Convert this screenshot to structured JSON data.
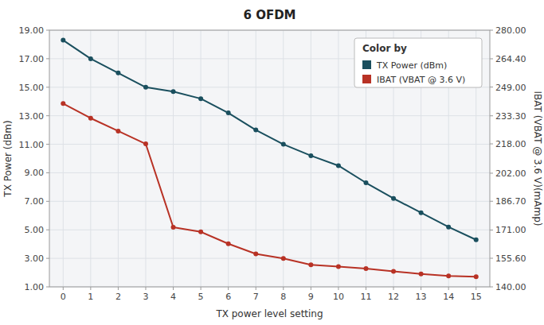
{
  "chart_data": {
    "type": "line",
    "title": "6 OFDM",
    "xlabel": "TX power level setting",
    "ylabel": "TX Power (dBm)",
    "y2label": "IBAT (VBAT @ 3.6 V)(mAmp)",
    "x": [
      0,
      1,
      2,
      3,
      4,
      5,
      6,
      7,
      8,
      9,
      10,
      11,
      12,
      13,
      14,
      15
    ],
    "series": [
      {
        "name": "TX Power (dBm)",
        "color": "#1a4f5e",
        "marker": "circle",
        "values": [
          18.3,
          17.0,
          16.0,
          15.0,
          14.7,
          14.2,
          13.2,
          12.0,
          11.0,
          10.2,
          9.5,
          8.3,
          7.2,
          6.2,
          5.2,
          4.3
        ]
      },
      {
        "name": "IBAT (VBAT @ 3.6 V)",
        "color": "#b83225",
        "marker": "circle",
        "axis": "y2",
        "values": [
          240.0,
          232.0,
          225.0,
          218.0,
          172.5,
          170.0,
          163.5,
          158.0,
          155.5,
          152.0,
          151.0,
          150.0,
          148.5,
          147.0,
          146.0,
          145.5
        ]
      }
    ],
    "legend_title": "Color by",
    "legend": "upper right",
    "grid": true,
    "xlim": [
      -0.5,
      15.5
    ],
    "xticks": [
      0,
      1,
      2,
      3,
      4,
      5,
      6,
      7,
      8,
      9,
      10,
      11,
      12,
      13,
      14,
      15
    ],
    "ylim": [
      1.0,
      19.0
    ],
    "yticks": [
      {
        "value": 1.0,
        "label": "1.00"
      },
      {
        "value": 3.0,
        "label": "3.00"
      },
      {
        "value": 5.0,
        "label": "5.00"
      },
      {
        "value": 7.0,
        "label": "7.00"
      },
      {
        "value": 9.0,
        "label": "9.00"
      },
      {
        "value": 11.0,
        "label": "11.00"
      },
      {
        "value": 13.0,
        "label": "13.00"
      },
      {
        "value": 15.0,
        "label": "15.00"
      },
      {
        "value": 17.0,
        "label": "17.00"
      },
      {
        "value": 19.0,
        "label": "19.00"
      }
    ],
    "y2lim": [
      140.0,
      280.0
    ],
    "y2ticks": [
      {
        "value": 140.0,
        "label": "140.00"
      },
      {
        "value": 155.6,
        "label": "155.60"
      },
      {
        "value": 171.0,
        "label": "171.00"
      },
      {
        "value": 186.7,
        "label": "186.70"
      },
      {
        "value": 202.0,
        "label": "202.00"
      },
      {
        "value": 218.0,
        "label": "218.00"
      },
      {
        "value": 233.3,
        "label": "233.30"
      },
      {
        "value": 249.0,
        "label": "249.00"
      },
      {
        "value": 264.4,
        "label": "264.40"
      },
      {
        "value": 280.0,
        "label": "280.00"
      }
    ]
  }
}
